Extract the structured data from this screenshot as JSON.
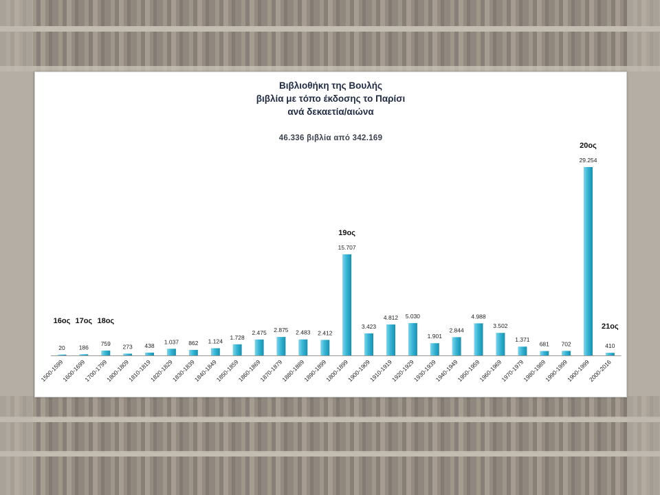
{
  "colors": {
    "bar": "#38b6d6",
    "bar_dark": "#1690b0",
    "bar_light": "#7fd4ea",
    "text": "#222222",
    "axis": "#9a9a9a"
  },
  "chart_data": {
    "type": "bar",
    "title_lines": [
      "Βιβλιοθήκη της Βουλής",
      "βιβλία με τόπο έκδοσης το Παρίσι",
      "ανά δεκαετία/αιώνα"
    ],
    "subtitle": "46.336 βιβλία από 342.169",
    "xlabel": "",
    "ylabel": "",
    "ylim": [
      0,
      29254
    ],
    "grid": false,
    "legend": "none",
    "categories": [
      "1500-1599",
      "1600-1699",
      "1700-1799",
      "1800-1809",
      "1810-1819",
      "1820-1829",
      "1830-1839",
      "1840-1849",
      "1850-1859",
      "1860-1869",
      "1870-1879",
      "1880-1889",
      "1890-1899",
      "1800-1899",
      "1900-1909",
      "1910-1919",
      "1920-1929",
      "1930-1939",
      "1940-1949",
      "1950-1959",
      "1960-1969",
      "1970-1979",
      "1980-1989",
      "1990-1999",
      "1900-1999",
      "2000-2016"
    ],
    "values": [
      20,
      186,
      759,
      273,
      438,
      1037,
      862,
      1124,
      1728,
      2475,
      2875,
      2483,
      2412,
      15707,
      3423,
      4812,
      5030,
      1901,
      2844,
      4988,
      3502,
      1371,
      681,
      702,
      29254,
      410
    ],
    "value_labels": [
      "20",
      "186",
      "759",
      "273",
      "438",
      "1.037",
      "862",
      "1.124",
      "1.728",
      "2.475",
      "2.875",
      "2.483",
      "2.412",
      "15.707",
      "3.423",
      "4.812",
      "5.030",
      "1.901",
      "2.844",
      "4.988",
      "3.502",
      "1.371",
      "681",
      "702",
      "29.254",
      "410"
    ],
    "annotations": [
      {
        "text": "16ος",
        "category_index": 0
      },
      {
        "text": "17ος",
        "category_index": 1
      },
      {
        "text": "18ος",
        "category_index": 2
      },
      {
        "text": "19ος",
        "category_index": 13
      },
      {
        "text": "20ος",
        "category_index": 24
      },
      {
        "text": "21ος",
        "category_index": 25
      }
    ]
  }
}
